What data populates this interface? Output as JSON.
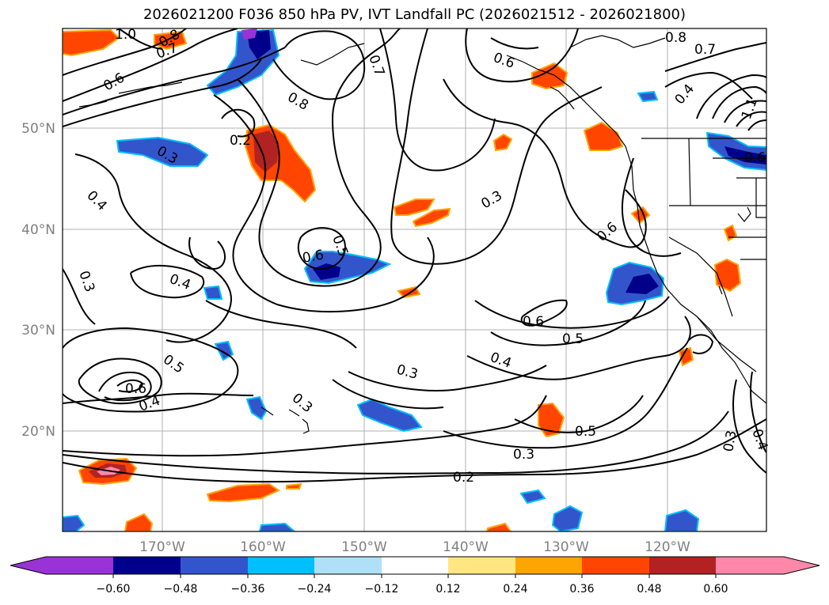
{
  "title": "2026021200 F036 850 hPa PV, IVT Landfall PC (2026021512 - 2026021800)",
  "lat_labels": [
    "50°N",
    "40°N",
    "30°N",
    "20°N"
  ],
  "lon_labels": [
    "170°W",
    "160°W",
    "150°W",
    "140°W",
    "130°W",
    "120°W"
  ],
  "colorbar": {
    "ticks": [
      "−0.60",
      "−0.48",
      "−0.36",
      "−0.24",
      "−0.12",
      "0.12",
      "0.24",
      "0.36",
      "0.48",
      "0.60"
    ],
    "colors": [
      "#9933d6",
      "#00008b",
      "#3355cc",
      "#00bfff",
      "#b0e0f8",
      "#ffffff",
      "#ffe680",
      "#ffa500",
      "#ff4500",
      "#b22222",
      "#ff88aa"
    ]
  },
  "contour_labels": [
    "1.0",
    "0.8",
    "0.7",
    "0.6",
    "0.8",
    "0.7",
    "0.6",
    "0.8",
    "0.7",
    "0.4",
    "1.1",
    "0.6",
    "0.2",
    "0.3",
    "0.4",
    "0.3",
    "0.5",
    "0.6",
    "0.4",
    "0.3",
    "0.6",
    "0.6",
    "0.5",
    "0.4",
    "0.3",
    "0.5",
    "0.6",
    "0.4",
    "0.3",
    "0.5",
    "0.3",
    "0.2",
    "0.3",
    "0.4"
  ]
}
